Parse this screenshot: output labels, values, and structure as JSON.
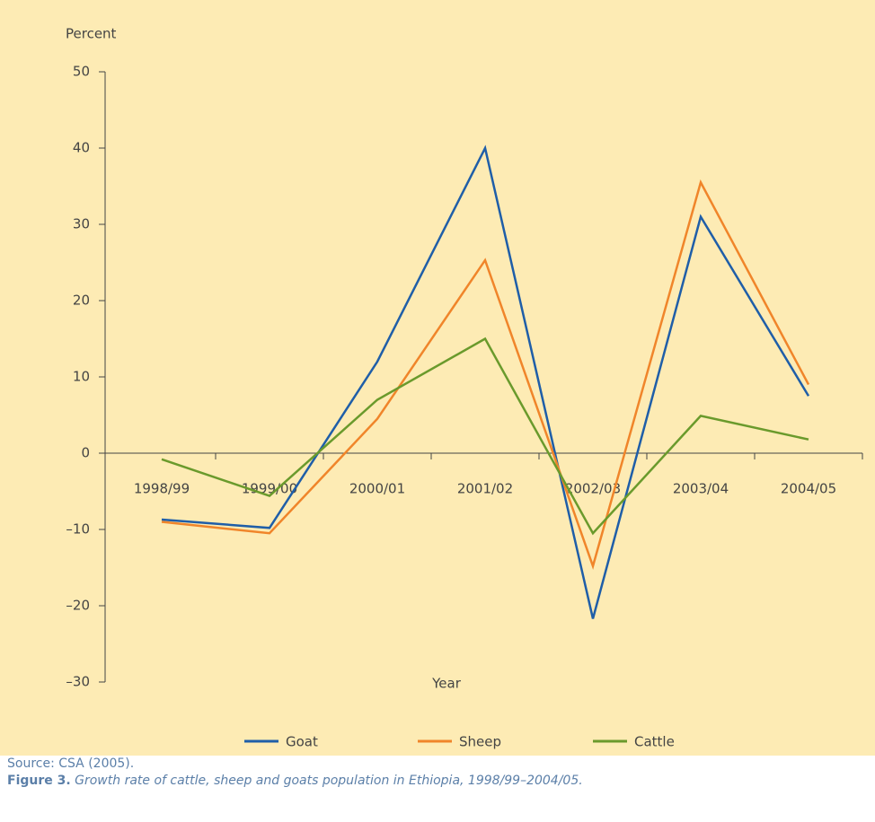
{
  "chart_data": {
    "type": "line",
    "y_axis_label": "Percent",
    "x_axis_label": "Year",
    "categories": [
      "1998/99",
      "1999/00",
      "2000/01",
      "2001/02",
      "2002/03",
      "2003/04",
      "2004/05"
    ],
    "series": [
      {
        "name": "Goat",
        "color": "#1f5ea8",
        "values": [
          -8.7,
          -9.8,
          12,
          40,
          -21.7,
          31,
          7.5
        ]
      },
      {
        "name": "Sheep",
        "color": "#f0852a",
        "values": [
          -9,
          -10.5,
          4.5,
          25.3,
          -14.8,
          35.5,
          9
        ]
      },
      {
        "name": "Cattle",
        "color": "#6a9a2c",
        "values": [
          -0.8,
          -5.6,
          7,
          15,
          -10.5,
          4.9,
          1.8
        ]
      }
    ],
    "ylim": [
      -30,
      50
    ],
    "yticks": [
      {
        "value": -30,
        "label": "–30"
      },
      {
        "value": -20,
        "label": "–20"
      },
      {
        "value": -10,
        "label": "–10"
      },
      0,
      10,
      20,
      30,
      40,
      50
    ],
    "source": "Source: CSA (2005).",
    "caption_label": "Figure 3.",
    "caption_text": "Growth rate of cattle, sheep and goats population in Ethiopia, 1998/99–2004/05."
  }
}
